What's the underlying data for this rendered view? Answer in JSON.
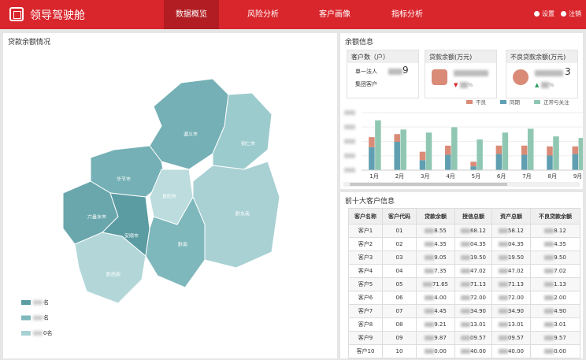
{
  "header": {
    "title": "领导驾驶舱",
    "nav": [
      "数据概览",
      "风险分析",
      "客户画像",
      "指标分析"
    ],
    "actions": [
      "设置",
      "注销"
    ]
  },
  "map_panel": {
    "title": "贷款余额情况",
    "regions": [
      "遵义市",
      "铜仁市",
      "毕节市",
      "贵阳市",
      "黔东南",
      "六盘水市",
      "安顺市",
      "黔南",
      "黔西南"
    ],
    "legend": [
      "名",
      "名",
      "0名"
    ]
  },
  "balance_panel": {
    "title": "余额信息",
    "cards": [
      {
        "title": "客户数（户）",
        "lines": [
          "单一法人",
          "集团客户"
        ],
        "value": "9"
      },
      {
        "title": "贷款余额(万元)",
        "change": "%"
      },
      {
        "title": "不良贷款余额(万元)",
        "value": "3",
        "change": "%"
      }
    ]
  },
  "chart_data": {
    "type": "bar",
    "categories": [
      "1月",
      "2月",
      "3月",
      "4月",
      "5月",
      "6月",
      "7月",
      "8月",
      "9月"
    ],
    "series": [
      {
        "name": "不良",
        "color": "#d98b77",
        "stack": "a",
        "values": [
          13,
          10,
          11,
          12,
          6,
          11,
          12,
          12,
          10
        ]
      },
      {
        "name": "同期",
        "color": "#5f9fb1",
        "stack": "a",
        "values": [
          30,
          37,
          13,
          20,
          5,
          21,
          20,
          19,
          21
        ]
      },
      {
        "name": "正常与关注",
        "color": "#8fc7b2",
        "stack": "b",
        "values": [
          65,
          53,
          49,
          56,
          40,
          49,
          54,
          44,
          42
        ]
      }
    ],
    "ylim": [
      0,
      75
    ],
    "grid": true
  },
  "table_panel": {
    "title": "前十大客户信息",
    "columns": [
      "客户名称",
      "客户代码",
      "贷款余额",
      "授信总额",
      "资产总额",
      "不良贷款余额"
    ],
    "rows": [
      [
        "客户1",
        "01",
        "8.55",
        "68.12",
        "58.12",
        "8.12"
      ],
      [
        "客户2",
        "02",
        "4.35",
        "04.35",
        "04.35",
        "4.35"
      ],
      [
        "客户3",
        "03",
        "9.05",
        "19.50",
        "19.50",
        "9.50"
      ],
      [
        "客户4",
        "04",
        "7.35",
        "47.02",
        "47.02",
        "7.02"
      ],
      [
        "客户5",
        "05",
        "71.65",
        "71.13",
        "71.13",
        "1.13"
      ],
      [
        "客户6",
        "06",
        "4.00",
        "72.00",
        "72.00",
        "2.00"
      ],
      [
        "客户7",
        "07",
        "4.45",
        "34.90",
        "34.90",
        "4.90"
      ],
      [
        "客户8",
        "08",
        "9.21",
        "13.01",
        "13.01",
        "3.01"
      ],
      [
        "客户9",
        "09",
        "9.87",
        "09.57",
        "09.57",
        "9.57"
      ],
      [
        "客户10",
        "10",
        "0.00",
        "40.00",
        "40.00",
        "0.00"
      ]
    ]
  }
}
